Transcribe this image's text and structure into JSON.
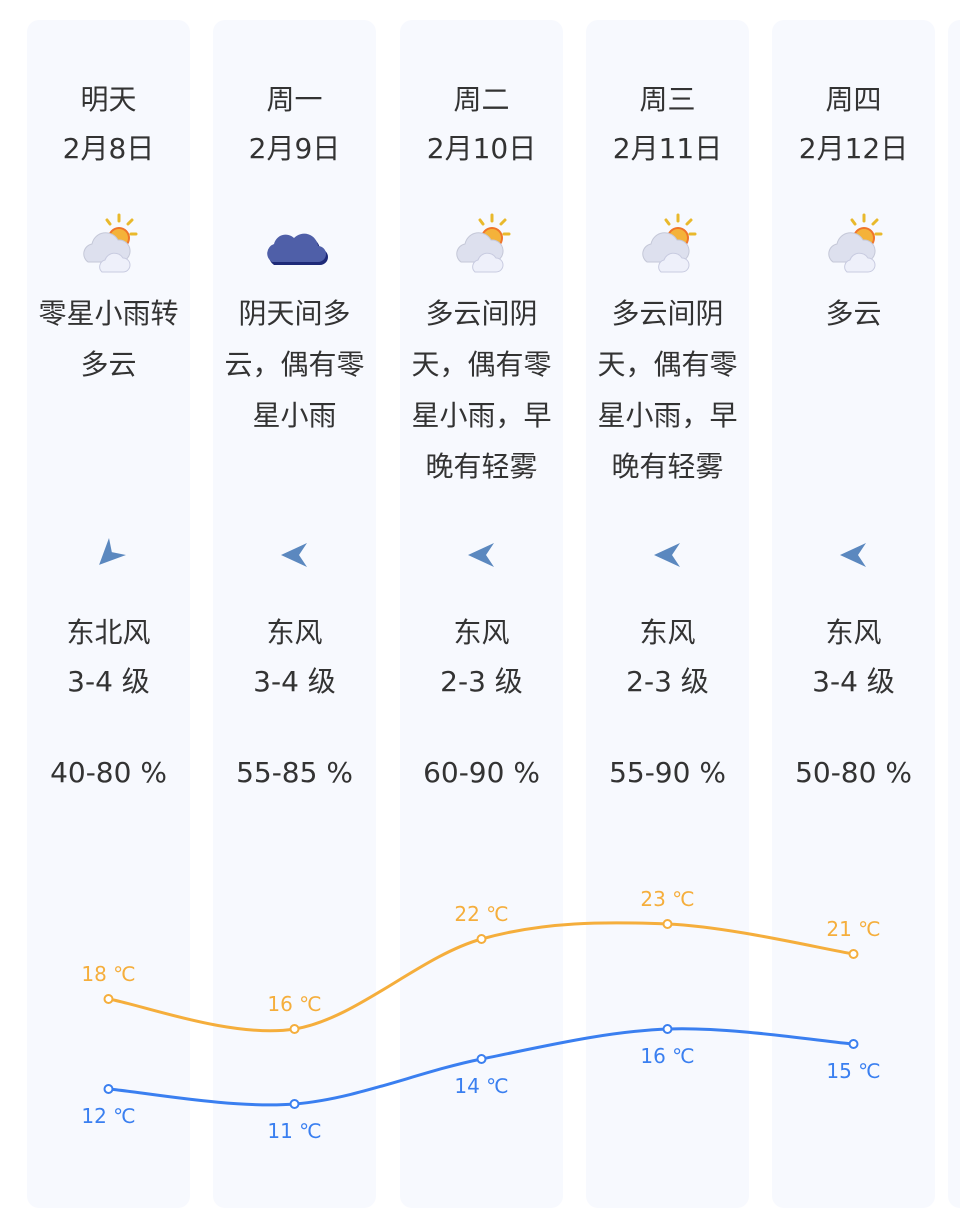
{
  "days": [
    {
      "day": "明天",
      "date": "2月8日",
      "weather_icon": "partly-cloudy-icon",
      "desc": "零星小雨转多云",
      "wind_dir": "东北风",
      "wind_level": "3-4 级",
      "wind_icon": "wind-arrow-northeast-icon",
      "humidity": "40-80 %",
      "high": "18 ℃",
      "low": "12 ℃"
    },
    {
      "day": "周一",
      "date": "2月9日",
      "weather_icon": "overcast-cloud-icon",
      "desc": "阴天间多云，偶有零星小雨",
      "wind_dir": "东风",
      "wind_level": "3-4 级",
      "wind_icon": "wind-arrow-east-icon",
      "humidity": "55-85 %",
      "high": "16 ℃",
      "low": "11 ℃"
    },
    {
      "day": "周二",
      "date": "2月10日",
      "weather_icon": "partly-cloudy-icon",
      "desc": "多云间阴天，偶有零星小雨，早晚有轻雾",
      "wind_dir": "东风",
      "wind_level": "2-3 级",
      "wind_icon": "wind-arrow-east-icon",
      "humidity": "60-90 %",
      "high": "22 ℃",
      "low": "14 ℃"
    },
    {
      "day": "周三",
      "date": "2月11日",
      "weather_icon": "partly-cloudy-icon",
      "desc": "多云间阴天，偶有零星小雨，早晚有轻雾",
      "wind_dir": "东风",
      "wind_level": "2-3 级",
      "wind_icon": "wind-arrow-east-icon",
      "humidity": "55-90 %",
      "high": "23 ℃",
      "low": "16 ℃"
    },
    {
      "day": "周四",
      "date": "2月12日",
      "weather_icon": "partly-cloudy-icon",
      "desc": "多云",
      "wind_dir": "东风",
      "wind_level": "3-4 级",
      "wind_icon": "wind-arrow-east-icon",
      "humidity": "50-80 %",
      "high": "21 ℃",
      "low": "15 ℃"
    }
  ],
  "chart_data": {
    "type": "line",
    "categories": [
      "2月8日",
      "2月9日",
      "2月10日",
      "2月11日",
      "2月12日"
    ],
    "series": [
      {
        "key": "high",
        "values": [
          18,
          16,
          22,
          23,
          21
        ],
        "color": "#f5ae3c"
      },
      {
        "key": "low",
        "values": [
          12,
          11,
          14,
          16,
          15
        ],
        "color": "#3a7ff0"
      }
    ],
    "unit": "℃"
  },
  "colors": {
    "card_bg": "#f7f9fe",
    "text": "#333333",
    "wind_arrow": "#5b88bf",
    "high": "#f5ae3c",
    "low": "#3a7ff0"
  }
}
